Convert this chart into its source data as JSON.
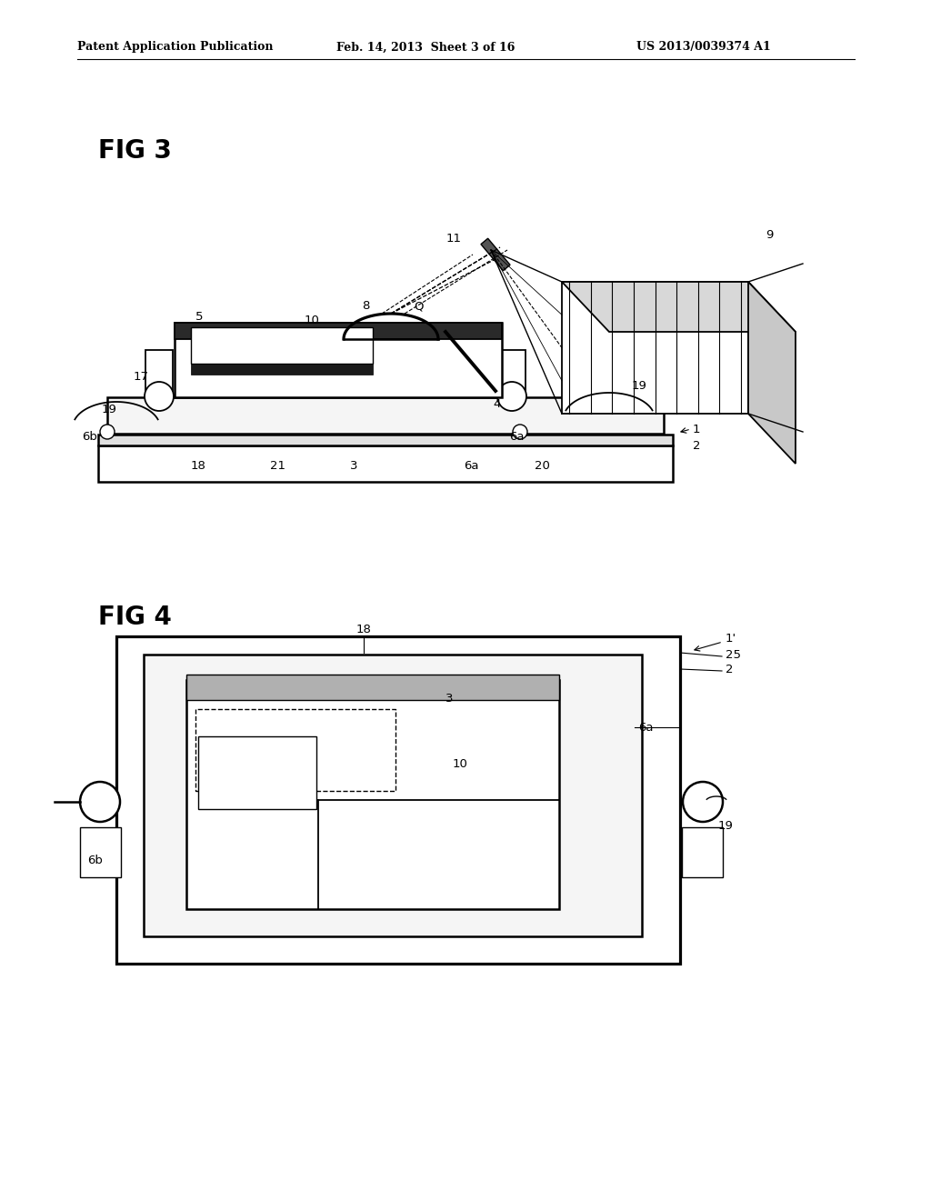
{
  "bg_color": "#ffffff",
  "line_color": "#000000",
  "header_text": "Patent Application Publication",
  "header_date": "Feb. 14, 2013  Sheet 3 of 16",
  "header_patent": "US 2013/0039374 A1",
  "fig3_label": "FIG 3",
  "fig4_label": "FIG 4"
}
